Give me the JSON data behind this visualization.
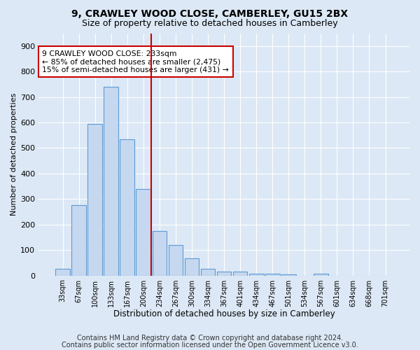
{
  "title": "9, CRAWLEY WOOD CLOSE, CAMBERLEY, GU15 2BX",
  "subtitle": "Size of property relative to detached houses in Camberley",
  "xlabel": "Distribution of detached houses by size in Camberley",
  "ylabel": "Number of detached properties",
  "bar_labels": [
    "33sqm",
    "67sqm",
    "100sqm",
    "133sqm",
    "167sqm",
    "200sqm",
    "234sqm",
    "267sqm",
    "300sqm",
    "334sqm",
    "367sqm",
    "401sqm",
    "434sqm",
    "467sqm",
    "501sqm",
    "534sqm",
    "567sqm",
    "601sqm",
    "634sqm",
    "668sqm",
    "701sqm"
  ],
  "bar_values": [
    25,
    275,
    595,
    740,
    535,
    340,
    175,
    120,
    68,
    25,
    15,
    15,
    8,
    8,
    5,
    0,
    8,
    0,
    0,
    0,
    0
  ],
  "bar_color": "#c5d8ef",
  "bar_edge_color": "#5b9bd5",
  "vline_color": "#cc0000",
  "annotation_text": "9 CRAWLEY WOOD CLOSE: 233sqm\n← 85% of detached houses are smaller (2,475)\n15% of semi-detached houses are larger (431) →",
  "annotation_box_color": "#ffffff",
  "annotation_border_color": "#cc0000",
  "ylim": [
    0,
    950
  ],
  "yticks": [
    0,
    100,
    200,
    300,
    400,
    500,
    600,
    700,
    800,
    900
  ],
  "footer1": "Contains HM Land Registry data © Crown copyright and database right 2024.",
  "footer2": "Contains public sector information licensed under the Open Government Licence v3.0.",
  "bg_color": "#dce8f5",
  "plot_bg_color": "#dce8f5",
  "grid_color": "#ffffff",
  "title_fontsize": 10,
  "subtitle_fontsize": 9,
  "footer_fontsize": 7
}
